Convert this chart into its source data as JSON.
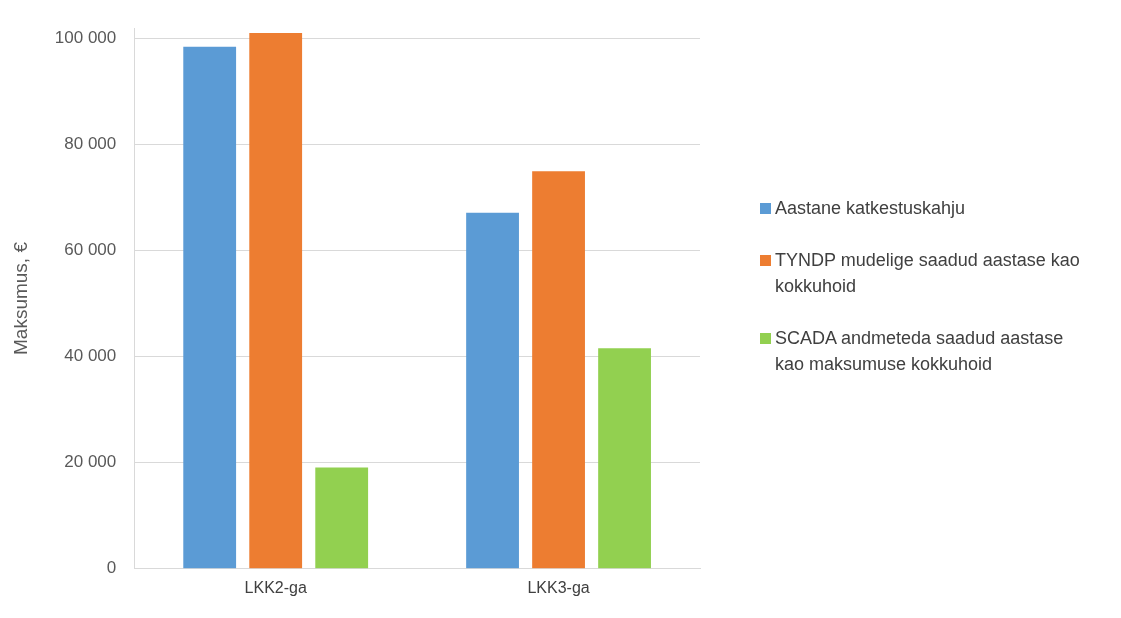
{
  "chart_data": {
    "type": "bar",
    "ylabel": "Maksumus, €",
    "categories": [
      "LKK2-ga",
      "LKK3-ga"
    ],
    "series": [
      {
        "name": "Aastane katkestuskahju",
        "color": "#5b9bd5",
        "values": [
          98500,
          67200
        ]
      },
      {
        "name": "TYNDP mudelige saadud aastase kao kokkuhoid",
        "color": "#ed7d31",
        "values": [
          101100,
          75000
        ]
      },
      {
        "name": "SCADA andmeteda saadud aastase kao maksumuse kokkuhoid",
        "color": "#92d050",
        "values": [
          19100,
          41600
        ]
      }
    ],
    "ylim": [
      0,
      102000
    ],
    "yticks": [
      {
        "value": 0,
        "label": "0"
      },
      {
        "value": 20000,
        "label": "20 000"
      },
      {
        "value": 40000,
        "label": "40 000"
      },
      {
        "value": 60000,
        "label": "60 000"
      },
      {
        "value": 80000,
        "label": "80 000"
      },
      {
        "value": 100000,
        "label": "100 000"
      }
    ],
    "grid": "y",
    "legend": "right"
  }
}
